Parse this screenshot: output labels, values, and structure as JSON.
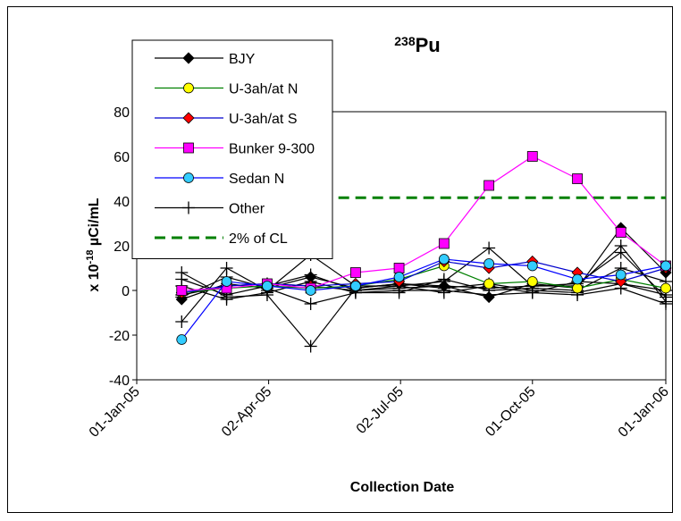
{
  "chart_data": {
    "type": "line",
    "title_sup": "238",
    "title_main": "Pu",
    "xlabel": "Collection Date",
    "ylabel_prefix": "x 10",
    "ylabel_sup": "-18",
    "ylabel_unit": " µCi/mL",
    "ylim": [
      -40,
      80
    ],
    "yticks": [
      -40,
      -20,
      0,
      20,
      40,
      60,
      80
    ],
    "xlim": [
      "2005-01-01",
      "2006-01-01"
    ],
    "xticks": [
      {
        "date": "2005-01-01",
        "label": "01-Jan-05"
      },
      {
        "date": "2005-04-02",
        "label": "02-Apr-05"
      },
      {
        "date": "2005-07-02",
        "label": "02-Jul-05"
      },
      {
        "date": "2005-10-01",
        "label": "01-Oct-05"
      },
      {
        "date": "2006-01-01",
        "label": "01-Jan-06"
      }
    ],
    "grid": false,
    "legend_position": "top-left",
    "series": [
      {
        "name": "BJY",
        "marker": "diamond",
        "line": "#000000",
        "fill": "#000000",
        "points": [
          [
            "2005-02-01",
            -4
          ],
          [
            "2005-03-04",
            3
          ],
          [
            "2005-04-01",
            1
          ],
          [
            "2005-05-01",
            6
          ],
          [
            "2005-06-01",
            1
          ],
          [
            "2005-07-01",
            3
          ],
          [
            "2005-08-01",
            2
          ],
          [
            "2005-09-01",
            -3
          ],
          [
            "2005-10-01",
            3
          ],
          [
            "2005-11-01",
            1
          ],
          [
            "2005-12-01",
            28
          ],
          [
            "2006-01-01",
            8
          ]
        ]
      },
      {
        "name": "U-3ah/at N",
        "marker": "circle",
        "line": "#008000",
        "fill": "#ffff00",
        "points": [
          [
            "2005-02-01",
            -1
          ],
          [
            "2005-03-04",
            1
          ],
          [
            "2005-04-01",
            2
          ],
          [
            "2005-05-01",
            1
          ],
          [
            "2005-06-01",
            2
          ],
          [
            "2005-07-01",
            5
          ],
          [
            "2005-08-01",
            11
          ],
          [
            "2005-09-01",
            3
          ],
          [
            "2005-10-01",
            4
          ],
          [
            "2005-11-01",
            1
          ],
          [
            "2005-12-01",
            5
          ],
          [
            "2006-01-01",
            1
          ]
        ]
      },
      {
        "name": "U-3ah/at S",
        "marker": "diamond",
        "line": "#0000cc",
        "fill": "#ff0000",
        "points": [
          [
            "2005-02-01",
            -1
          ],
          [
            "2005-03-04",
            2
          ],
          [
            "2005-04-01",
            3
          ],
          [
            "2005-05-01",
            2
          ],
          [
            "2005-06-01",
            3
          ],
          [
            "2005-07-01",
            4
          ],
          [
            "2005-08-01",
            13
          ],
          [
            "2005-09-01",
            10
          ],
          [
            "2005-10-01",
            13
          ],
          [
            "2005-11-01",
            8
          ],
          [
            "2005-12-01",
            4
          ],
          [
            "2006-01-01",
            10
          ]
        ]
      },
      {
        "name": "Bunker 9-300",
        "marker": "square",
        "line": "#ff00ff",
        "fill": "#ff00ff",
        "points": [
          [
            "2005-02-01",
            0
          ],
          [
            "2005-03-04",
            1
          ],
          [
            "2005-04-01",
            3
          ],
          [
            "2005-05-01",
            1
          ],
          [
            "2005-06-01",
            8
          ],
          [
            "2005-07-01",
            10
          ],
          [
            "2005-08-01",
            21
          ],
          [
            "2005-09-01",
            47
          ],
          [
            "2005-10-01",
            60
          ],
          [
            "2005-11-01",
            50
          ],
          [
            "2005-12-01",
            26
          ],
          [
            "2006-01-01",
            11
          ]
        ]
      },
      {
        "name": "Sedan N",
        "marker": "circle",
        "line": "#0000ff",
        "fill": "#33ccff",
        "points": [
          [
            "2005-02-01",
            -22
          ],
          [
            "2005-03-04",
            4
          ],
          [
            "2005-04-01",
            2
          ],
          [
            "2005-05-01",
            0
          ],
          [
            "2005-06-01",
            2
          ],
          [
            "2005-07-01",
            6
          ],
          [
            "2005-08-01",
            14
          ],
          [
            "2005-09-01",
            12
          ],
          [
            "2005-10-01",
            11
          ],
          [
            "2005-11-01",
            5
          ],
          [
            "2005-12-01",
            7
          ],
          [
            "2006-01-01",
            11
          ]
        ]
      },
      {
        "name": "Other",
        "marker": "plus",
        "line": "#000000",
        "fill": "#000000",
        "points": [
          [
            "2005-02-01",
            -14
          ],
          [
            "2005-03-04",
            10
          ],
          [
            "2005-04-01",
            0
          ],
          [
            "2005-05-01",
            16
          ],
          [
            "2005-06-01",
            2
          ],
          [
            "2005-07-01",
            2
          ],
          [
            "2005-08-01",
            4
          ],
          [
            "2005-09-01",
            19
          ],
          [
            "2005-10-01",
            2
          ],
          [
            "2005-11-01",
            2
          ],
          [
            "2005-12-01",
            20
          ],
          [
            "2006-01-01",
            -5
          ]
        ]
      },
      {
        "name": "Other",
        "marker": "plus",
        "line": "#000000",
        "fill": "#000000",
        "in_legend": false,
        "points": [
          [
            "2005-02-01",
            8
          ],
          [
            "2005-03-04",
            -3
          ],
          [
            "2005-04-01",
            -2
          ],
          [
            "2005-05-01",
            -25
          ],
          [
            "2005-06-01",
            1
          ],
          [
            "2005-07-01",
            3
          ],
          [
            "2005-08-01",
            1
          ],
          [
            "2005-09-01",
            3
          ],
          [
            "2005-10-01",
            0
          ],
          [
            "2005-11-01",
            -1
          ],
          [
            "2005-12-01",
            3
          ],
          [
            "2006-01-01",
            0
          ]
        ]
      },
      {
        "name": "Other",
        "marker": "plus",
        "line": "#000000",
        "fill": "#000000",
        "in_legend": false,
        "points": [
          [
            "2005-02-01",
            5
          ],
          [
            "2005-03-04",
            -2
          ],
          [
            "2005-04-01",
            2
          ],
          [
            "2005-05-01",
            7
          ],
          [
            "2005-06-01",
            0
          ],
          [
            "2005-07-01",
            1
          ],
          [
            "2005-08-01",
            2
          ],
          [
            "2005-09-01",
            1
          ],
          [
            "2005-10-01",
            2
          ],
          [
            "2005-11-01",
            3
          ],
          [
            "2005-12-01",
            17
          ],
          [
            "2006-01-01",
            -3
          ]
        ]
      },
      {
        "name": "Other",
        "marker": "plus",
        "line": "#000000",
        "fill": "#000000",
        "in_legend": false,
        "points": [
          [
            "2005-02-01",
            -3
          ],
          [
            "2005-03-04",
            6
          ],
          [
            "2005-04-01",
            1
          ],
          [
            "2005-05-01",
            -6
          ],
          [
            "2005-06-01",
            -1
          ],
          [
            "2005-07-01",
            0
          ],
          [
            "2005-08-01",
            0
          ],
          [
            "2005-09-01",
            -2
          ],
          [
            "2005-10-01",
            -1
          ],
          [
            "2005-11-01",
            -2
          ],
          [
            "2005-12-01",
            1
          ],
          [
            "2006-01-01",
            -6
          ]
        ]
      },
      {
        "name": "Other",
        "marker": "plus",
        "line": "#000000",
        "fill": "#000000",
        "in_legend": false,
        "points": [
          [
            "2005-02-01",
            2
          ],
          [
            "2005-03-04",
            -4
          ],
          [
            "2005-04-01",
            -1
          ],
          [
            "2005-05-01",
            4
          ],
          [
            "2005-06-01",
            -1
          ],
          [
            "2005-07-01",
            -1
          ],
          [
            "2005-08-01",
            5
          ],
          [
            "2005-09-01",
            0
          ],
          [
            "2005-10-01",
            1
          ],
          [
            "2005-11-01",
            0
          ],
          [
            "2005-12-01",
            10
          ],
          [
            "2006-01-01",
            4
          ]
        ]
      },
      {
        "name": "Other",
        "marker": "plus",
        "line": "#000000",
        "fill": "#000000",
        "in_legend": false,
        "points": [
          [
            "2005-02-01",
            -2
          ],
          [
            "2005-03-04",
            2
          ],
          [
            "2005-04-01",
            3
          ],
          [
            "2005-05-01",
            2
          ],
          [
            "2005-06-01",
            0
          ],
          [
            "2005-07-01",
            2
          ],
          [
            "2005-08-01",
            -1
          ],
          [
            "2005-09-01",
            2
          ],
          [
            "2005-10-01",
            -1
          ],
          [
            "2005-11-01",
            4
          ],
          [
            "2005-12-01",
            3
          ],
          [
            "2006-01-01",
            -2
          ]
        ]
      }
    ],
    "reference_line": {
      "name": "2% of CL",
      "value": 41.5,
      "color": "#008000",
      "dash": true,
      "from": "2005-04-15",
      "to": "2006-01-01"
    }
  }
}
